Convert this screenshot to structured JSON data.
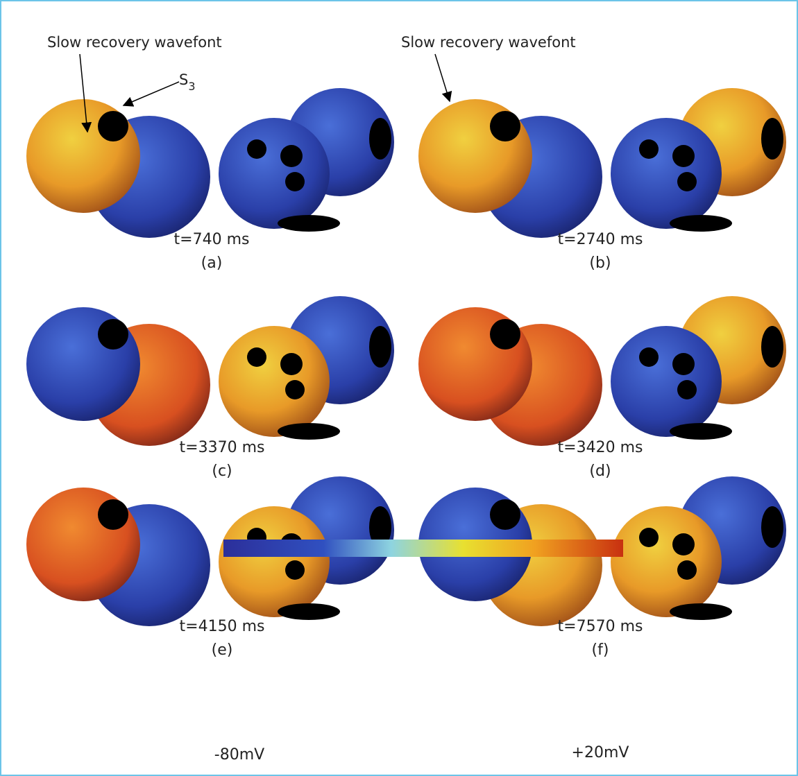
{
  "annotations": [
    "Slow recovery wavefont",
    "Slow recovery wavefont"
  ],
  "s3": {
    "base": "S",
    "subscript": "3"
  },
  "panels": [
    {
      "time": "t=740 ms",
      "label": "(a)"
    },
    {
      "time": "t=2740 ms",
      "label": "(b)"
    },
    {
      "time": "t=3370 ms",
      "label": "(c)"
    },
    {
      "time": "t=3420 ms",
      "label": "(d)"
    },
    {
      "time": "t=4150 ms",
      "label": "(e)"
    },
    {
      "time": "t=7570 ms",
      "label": "(f)"
    }
  ],
  "colorbar": {
    "min_label": "-80mV",
    "max_label": "+20mV"
  }
}
